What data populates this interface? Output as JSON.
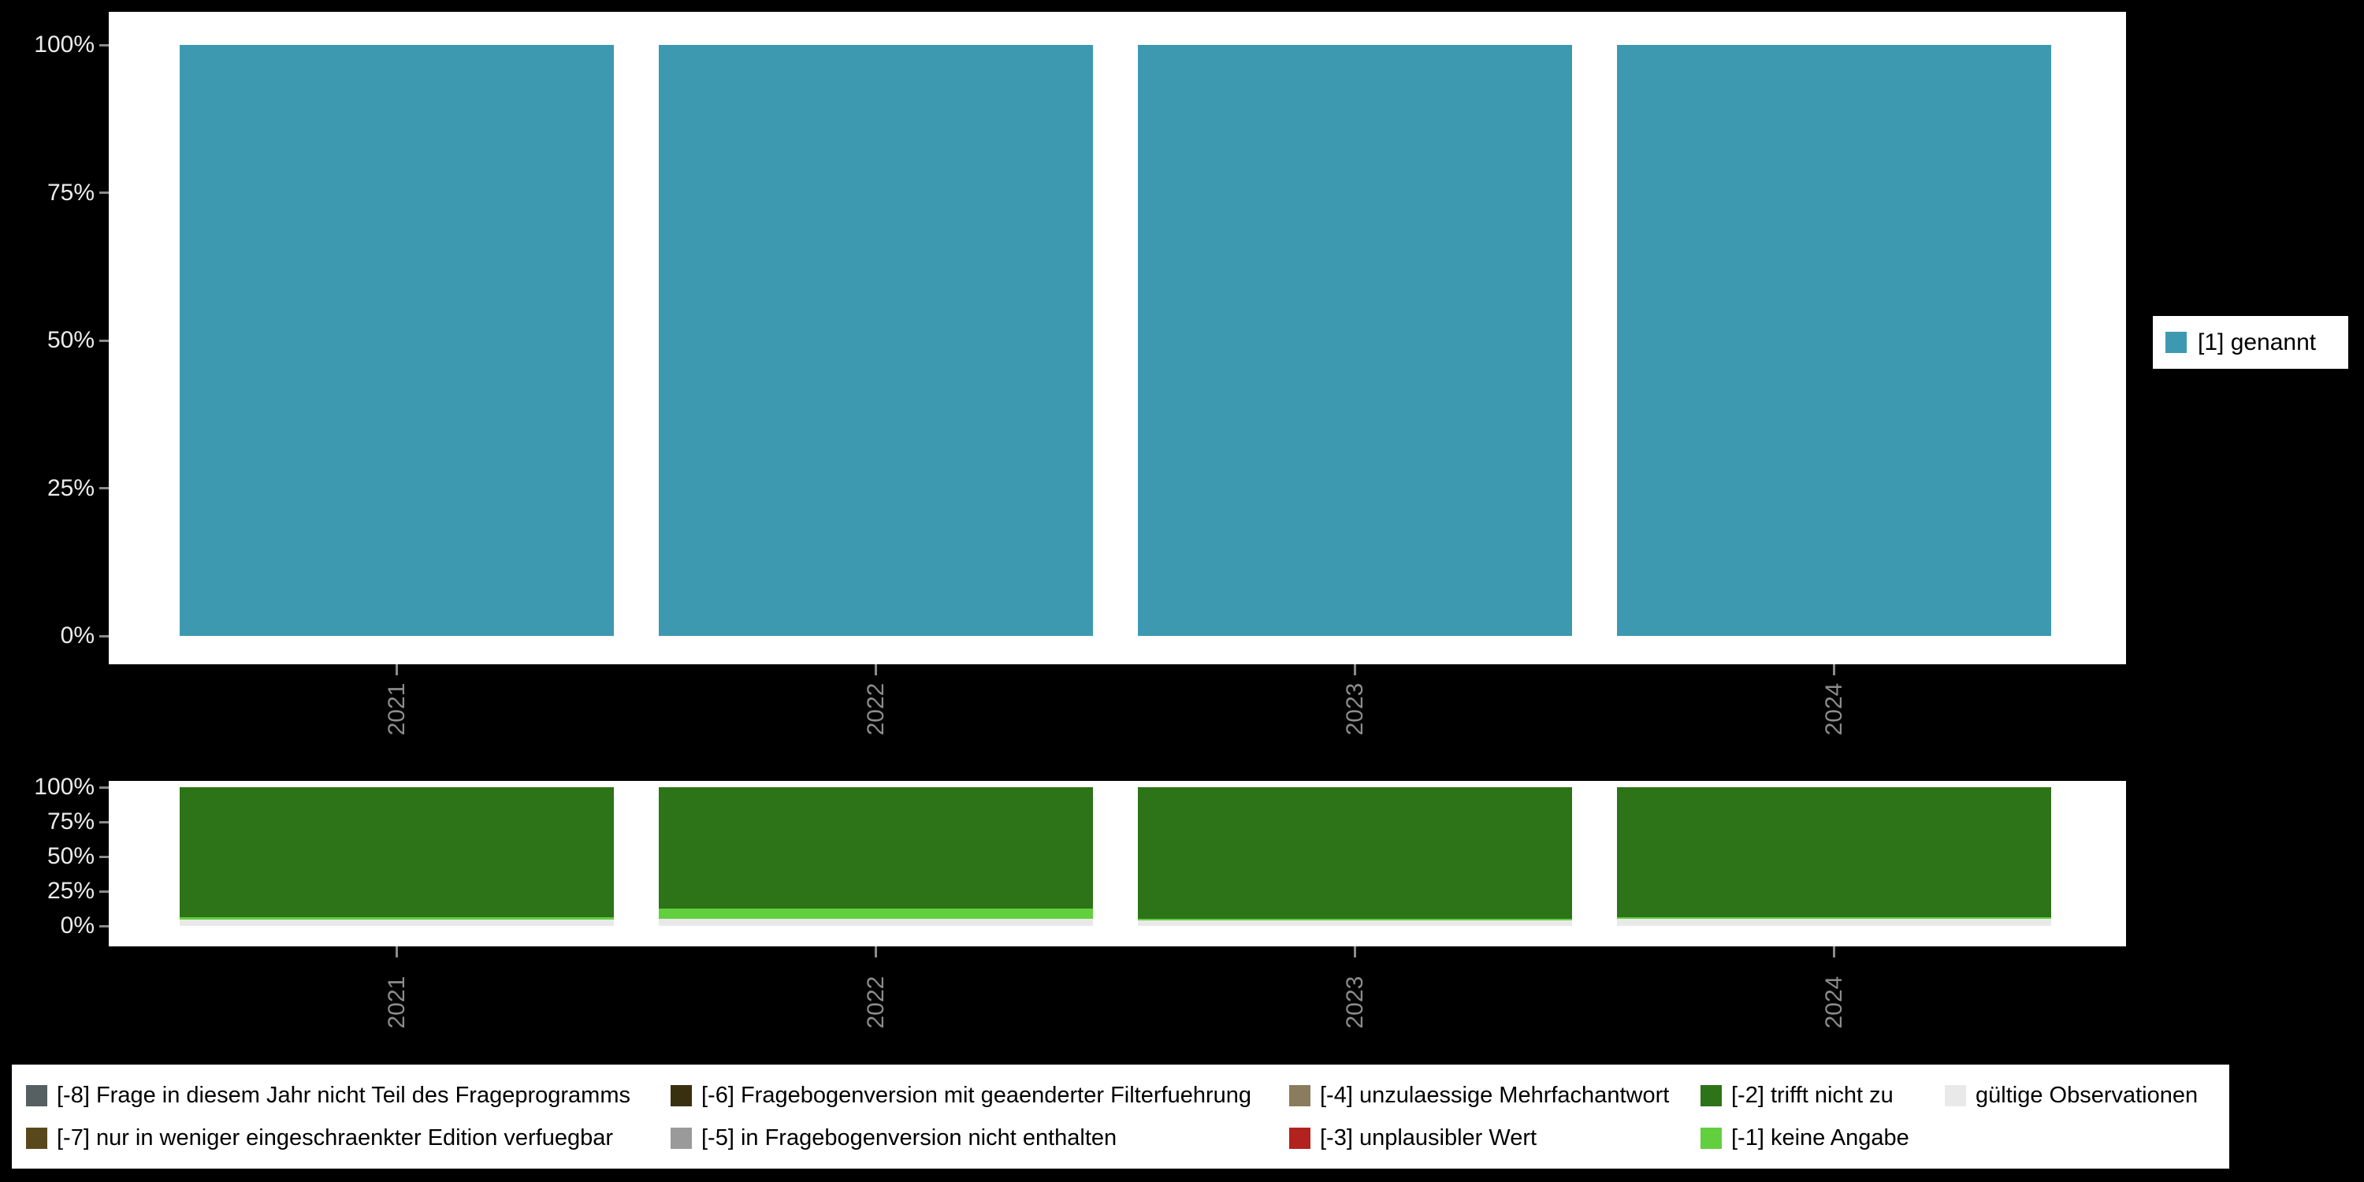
{
  "page": {
    "background": "#000000",
    "panel_background": "#ffffff"
  },
  "top_legend": {
    "label": "[1] genannt",
    "color": "#3d99b0"
  },
  "bottom_legend": {
    "items": [
      {
        "label": "[-8] Frage in diesem Jahr nicht Teil des Frageprogramms",
        "color": "#566063"
      },
      {
        "label": "[-7] nur in weniger eingeschraenkter Edition verfuegbar",
        "color": "#5a481d"
      },
      {
        "label": "[-6] Fragebogenversion mit geaenderter Filterfuehrung",
        "color": "#39300f"
      },
      {
        "label": "[-5] in Fragebogenversion nicht enthalten",
        "color": "#9a9a9a"
      },
      {
        "label": "[-4] unzulaessige Mehrfachantwort",
        "color": "#8a7c5c"
      },
      {
        "label": "[-3] unplausibler Wert",
        "color": "#b2221e"
      },
      {
        "label": "[-2] trifft nicht zu",
        "color": "#2d7318"
      },
      {
        "label": "[-1] keine Angabe",
        "color": "#62cf3f"
      },
      {
        "label": "gültige Observationen",
        "color": "#e9e9e9"
      }
    ]
  },
  "chart_data": [
    {
      "type": "bar",
      "title": "",
      "categories": [
        "2021",
        "2022",
        "2023",
        "2024"
      ],
      "series": [
        {
          "name": "[1] genannt",
          "color": "#3d99b0",
          "values": [
            100,
            100,
            100,
            100
          ]
        }
      ],
      "yticks": [
        "0%",
        "25%",
        "50%",
        "75%",
        "100%"
      ],
      "ylim": [
        0,
        100
      ],
      "xlabel": "",
      "ylabel": "",
      "grid": false,
      "legend_position": "right"
    },
    {
      "type": "stacked-bar",
      "title": "",
      "categories": [
        "2021",
        "2022",
        "2023",
        "2024"
      ],
      "series": [
        {
          "name": "[-2] trifft nicht zu",
          "color": "#2d7318",
          "values": [
            94,
            87.5,
            95,
            94
          ]
        },
        {
          "name": "[-1] keine Angabe",
          "color": "#62cf3f",
          "values": [
            1.5,
            7.5,
            1,
            1
          ]
        },
        {
          "name": "gültige Observationen",
          "color": "#e9e9e9",
          "values": [
            4.5,
            5,
            4,
            5
          ]
        }
      ],
      "yticks": [
        "0%",
        "25%",
        "50%",
        "75%",
        "100%"
      ],
      "ylim": [
        0,
        100
      ],
      "xlabel": "",
      "ylabel": "",
      "grid": false,
      "legend_position": "bottom"
    }
  ]
}
